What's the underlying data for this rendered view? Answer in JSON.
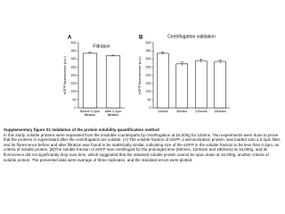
{
  "chart_data": [
    {
      "type": "bar",
      "panel": "A",
      "title": "Filtration",
      "y_label": "eGFP fluorescence (a.u.)",
      "categories": [
        "Before 0.2μm filtration",
        "After 0.2μm filtration"
      ],
      "values": [
        335,
        320
      ],
      "errors": [
        6,
        4
      ],
      "color": "#ffffff",
      "ylim": [
        0,
        400
      ],
      "yticks": [
        0,
        50,
        100,
        150,
        200,
        250,
        300,
        350,
        400
      ]
    },
    {
      "type": "bar",
      "panel": "B",
      "title": "Centrifugation validation",
      "y_label": "eGFP fluorescence (a.u.)",
      "categories": [
        "10mins",
        "60mins",
        "120mins",
        "180mins"
      ],
      "values": [
        335,
        270,
        290,
        285
      ],
      "errors": [
        8,
        12,
        10,
        10
      ],
      "color": "#ffffff",
      "ylim": [
        0,
        400
      ],
      "yticks": [
        0,
        50,
        100,
        150,
        200,
        250,
        300,
        350,
        400
      ]
    }
  ],
  "caption": {
    "title": "Supplementary figure S1 Validation of the protein solubility quantification method",
    "text": "In this study, soluble proteins were separated from the insoluble counterparts by centrifugation at 16,000g for 10mins. Two experiments were done to prove that the proteins in supernatant after the centrifugation are soluble. (A) The soluble fraction of eGFP, a demonstration protein, was loaded onto a 0.2μm filter, and its florescence before and after filtration was found to be statistically similar, indicating size of the eGFP in the soluble fraction to be less than 0.2μm, an criteria of soluble protein. (B)The soluble fraction of eGFP was centrifuged for the prolonged time (60mins, 120mins and 180mins) at 16,000g, and its florescence did not significantly drop over time, which suggested that the obtained soluble protein cannot be spun down at 16,000g, another criteria of soluble protein. The presented data were average of three replicates, and the standard errors were plotted."
  }
}
